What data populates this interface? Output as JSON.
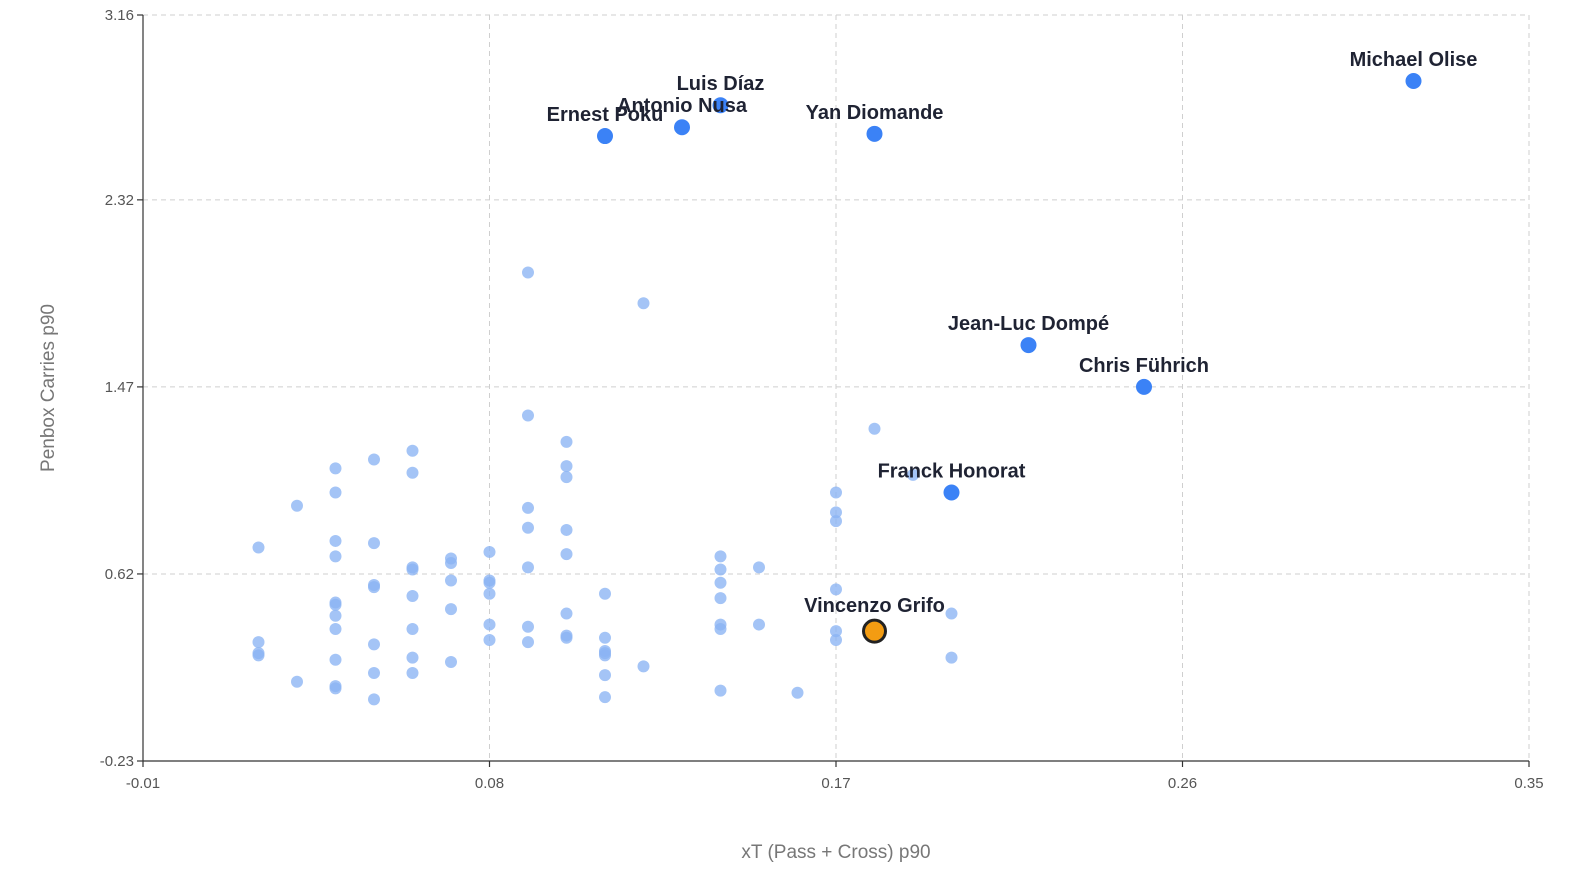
{
  "chart_data": {
    "type": "scatter",
    "title": "",
    "xlabel": "xT (Pass + Cross) p90",
    "ylabel": "Penbox Carries p90",
    "xlim": [
      -0.01,
      0.35
    ],
    "ylim": [
      -0.23,
      3.16
    ],
    "x_ticks": [
      "-0.01",
      "0.08",
      "0.17",
      "0.26",
      "0.35"
    ],
    "y_ticks": [
      "-0.23",
      "0.62",
      "1.47",
      "2.32",
      "3.16"
    ],
    "grid": true,
    "colors": {
      "background_points": "#8ab3f3",
      "highlight_points": "#3b82f6",
      "focus_point": "#f39c12",
      "focus_outline": "#222222",
      "label_text": "#1f2333"
    },
    "focus_point": {
      "name": "Vincenzo Grifo",
      "x": 0.18,
      "y": 0.36
    },
    "labeled_points": [
      {
        "name": "Michael Olise",
        "x": 0.32,
        "y": 2.86
      },
      {
        "name": "Luis Díaz",
        "x": 0.14,
        "y": 2.75
      },
      {
        "name": "Antonio Nusa",
        "x": 0.13,
        "y": 2.65
      },
      {
        "name": "Ernest Poku",
        "x": 0.11,
        "y": 2.61
      },
      {
        "name": "Yan Diomande",
        "x": 0.18,
        "y": 2.62
      },
      {
        "name": "Jean-Luc Dompé",
        "x": 0.22,
        "y": 1.66
      },
      {
        "name": "Chris Führich",
        "x": 0.25,
        "y": 1.47
      },
      {
        "name": "Franck Honorat",
        "x": 0.2,
        "y": 0.99
      }
    ],
    "other_points": [
      {
        "x": 0.09,
        "y": 1.99
      },
      {
        "x": 0.12,
        "y": 1.85
      },
      {
        "x": 0.18,
        "y": 1.28
      },
      {
        "x": 0.09,
        "y": 1.34
      },
      {
        "x": 0.1,
        "y": 1.22
      },
      {
        "x": 0.1,
        "y": 1.11
      },
      {
        "x": 0.1,
        "y": 1.06
      },
      {
        "x": 0.06,
        "y": 1.18
      },
      {
        "x": 0.06,
        "y": 1.08
      },
      {
        "x": 0.05,
        "y": 1.14
      },
      {
        "x": 0.04,
        "y": 1.1
      },
      {
        "x": 0.04,
        "y": 0.99
      },
      {
        "x": 0.03,
        "y": 0.93
      },
      {
        "x": 0.09,
        "y": 0.92
      },
      {
        "x": 0.09,
        "y": 0.83
      },
      {
        "x": 0.1,
        "y": 0.82
      },
      {
        "x": 0.04,
        "y": 0.77
      },
      {
        "x": 0.05,
        "y": 0.76
      },
      {
        "x": 0.02,
        "y": 0.74
      },
      {
        "x": 0.04,
        "y": 0.7
      },
      {
        "x": 0.08,
        "y": 0.72
      },
      {
        "x": 0.1,
        "y": 0.71
      },
      {
        "x": 0.07,
        "y": 0.69
      },
      {
        "x": 0.07,
        "y": 0.67
      },
      {
        "x": 0.06,
        "y": 0.65
      },
      {
        "x": 0.06,
        "y": 0.64
      },
      {
        "x": 0.09,
        "y": 0.65
      },
      {
        "x": 0.14,
        "y": 0.7
      },
      {
        "x": 0.14,
        "y": 0.64
      },
      {
        "x": 0.15,
        "y": 0.65
      },
      {
        "x": 0.14,
        "y": 0.58
      },
      {
        "x": 0.07,
        "y": 0.59
      },
      {
        "x": 0.08,
        "y": 0.59
      },
      {
        "x": 0.08,
        "y": 0.58
      },
      {
        "x": 0.05,
        "y": 0.57
      },
      {
        "x": 0.05,
        "y": 0.56
      },
      {
        "x": 0.08,
        "y": 0.53
      },
      {
        "x": 0.11,
        "y": 0.53
      },
      {
        "x": 0.06,
        "y": 0.52
      },
      {
        "x": 0.14,
        "y": 0.51
      },
      {
        "x": 0.17,
        "y": 0.55
      },
      {
        "x": 0.19,
        "y": 1.07
      },
      {
        "x": 0.17,
        "y": 0.99
      },
      {
        "x": 0.17,
        "y": 0.9
      },
      {
        "x": 0.17,
        "y": 0.86
      },
      {
        "x": 0.04,
        "y": 0.49
      },
      {
        "x": 0.04,
        "y": 0.48
      },
      {
        "x": 0.07,
        "y": 0.46
      },
      {
        "x": 0.04,
        "y": 0.43
      },
      {
        "x": 0.1,
        "y": 0.44
      },
      {
        "x": 0.2,
        "y": 0.44
      },
      {
        "x": 0.04,
        "y": 0.37
      },
      {
        "x": 0.06,
        "y": 0.37
      },
      {
        "x": 0.08,
        "y": 0.39
      },
      {
        "x": 0.09,
        "y": 0.38
      },
      {
        "x": 0.14,
        "y": 0.39
      },
      {
        "x": 0.14,
        "y": 0.37
      },
      {
        "x": 0.15,
        "y": 0.39
      },
      {
        "x": 0.17,
        "y": 0.36
      },
      {
        "x": 0.17,
        "y": 0.32
      },
      {
        "x": 0.1,
        "y": 0.34
      },
      {
        "x": 0.1,
        "y": 0.33
      },
      {
        "x": 0.11,
        "y": 0.33
      },
      {
        "x": 0.08,
        "y": 0.32
      },
      {
        "x": 0.09,
        "y": 0.31
      },
      {
        "x": 0.05,
        "y": 0.3
      },
      {
        "x": 0.02,
        "y": 0.31
      },
      {
        "x": 0.02,
        "y": 0.26
      },
      {
        "x": 0.02,
        "y": 0.25
      },
      {
        "x": 0.11,
        "y": 0.27
      },
      {
        "x": 0.11,
        "y": 0.26
      },
      {
        "x": 0.11,
        "y": 0.25
      },
      {
        "x": 0.06,
        "y": 0.24
      },
      {
        "x": 0.04,
        "y": 0.23
      },
      {
        "x": 0.07,
        "y": 0.22
      },
      {
        "x": 0.2,
        "y": 0.24
      },
      {
        "x": 0.12,
        "y": 0.2
      },
      {
        "x": 0.06,
        "y": 0.17
      },
      {
        "x": 0.05,
        "y": 0.17
      },
      {
        "x": 0.11,
        "y": 0.16
      },
      {
        "x": 0.03,
        "y": 0.13
      },
      {
        "x": 0.04,
        "y": 0.11
      },
      {
        "x": 0.04,
        "y": 0.1
      },
      {
        "x": 0.14,
        "y": 0.09
      },
      {
        "x": 0.16,
        "y": 0.08
      },
      {
        "x": 0.05,
        "y": 0.05
      },
      {
        "x": 0.11,
        "y": 0.06
      }
    ]
  }
}
